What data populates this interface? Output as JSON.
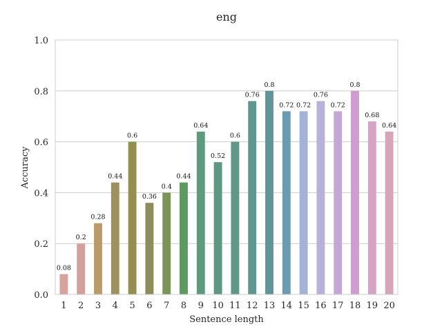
{
  "chart_data": {
    "type": "bar",
    "title": "eng",
    "xlabel": "Sentence length",
    "ylabel": "Accuracy",
    "categories": [
      "1",
      "2",
      "3",
      "4",
      "5",
      "6",
      "7",
      "8",
      "9",
      "10",
      "11",
      "12",
      "13",
      "14",
      "15",
      "16",
      "17",
      "18",
      "19",
      "20"
    ],
    "values": [
      0.08,
      0.2,
      0.28,
      0.44,
      0.6,
      0.36,
      0.4,
      0.44,
      0.64,
      0.52,
      0.6,
      0.76,
      0.8,
      0.72,
      0.72,
      0.76,
      0.72,
      0.8,
      0.68,
      0.64
    ],
    "value_labels": [
      "0.08",
      "0.2",
      "0.28",
      "0.44",
      "0.6",
      "0.36",
      "0.4",
      "0.44",
      "0.64",
      "0.52",
      "0.6",
      "0.76",
      "0.8",
      "0.72",
      "0.72",
      "0.76",
      "0.72",
      "0.8",
      "0.68",
      "0.64"
    ],
    "ylim": [
      0,
      1.0
    ],
    "yticks": [
      0.0,
      0.2,
      0.4,
      0.6,
      0.8,
      1.0
    ],
    "ytick_labels": [
      "0.0",
      "0.2",
      "0.4",
      "0.6",
      "0.8",
      "1.0"
    ],
    "grid": "horizontal",
    "colors": [
      "#d8a39d",
      "#d3a09b",
      "#bb9b6a",
      "#9e915f",
      "#958e52",
      "#8c8e5a",
      "#7d9459",
      "#5d9a5f",
      "#5e9a7e",
      "#5e9883",
      "#5e9889",
      "#5f968f",
      "#619498",
      "#6b9bb2",
      "#a2b3d6",
      "#b8b1d9",
      "#c3a8d5",
      "#cf9dcd",
      "#d5a4c5",
      "#d7a5b8"
    ]
  }
}
